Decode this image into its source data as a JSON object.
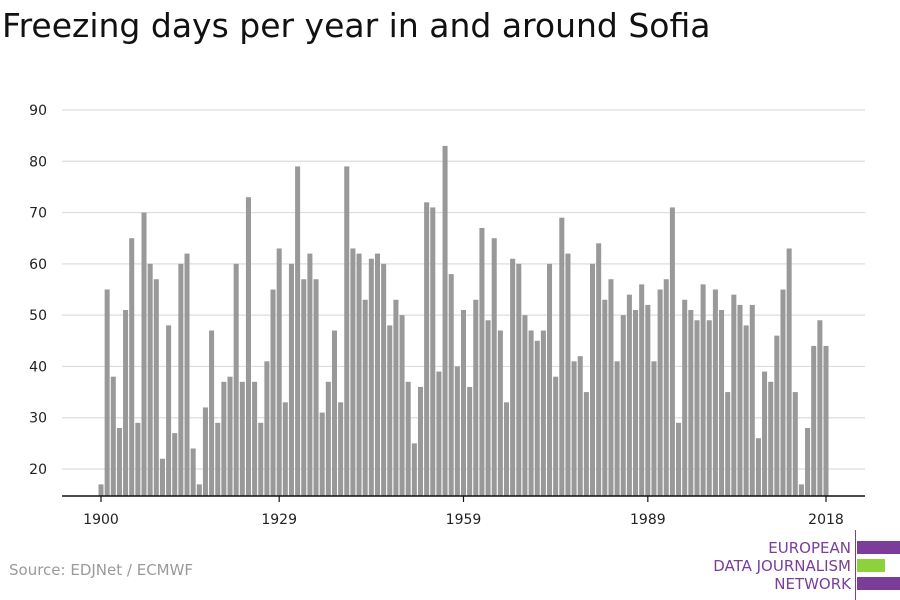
{
  "title": "Freezing days per year in and around Sofia",
  "source": "Source: EDJNet / ECMWF",
  "logo": {
    "lines": [
      "EUROPEAN",
      "DATA JOURNALISM",
      "NETWORK"
    ],
    "colors": {
      "purple": "#7b3d99",
      "green": "#8cd23a"
    }
  },
  "chart_data": {
    "type": "bar",
    "title": "Freezing days per year in and around Sofia",
    "xlabel": "",
    "ylabel": "",
    "ylim": [
      15,
      90
    ],
    "yticks": [
      20,
      30,
      40,
      50,
      60,
      70,
      80,
      90
    ],
    "xticks": [
      1900,
      1929,
      1959,
      1989,
      2018
    ],
    "grid": true,
    "bar_color": "#999999",
    "first_year": 1900,
    "categories": [
      1900,
      1901,
      1902,
      1903,
      1904,
      1905,
      1906,
      1907,
      1908,
      1909,
      1910,
      1911,
      1912,
      1913,
      1914,
      1915,
      1916,
      1917,
      1918,
      1919,
      1920,
      1921,
      1922,
      1923,
      1924,
      1925,
      1926,
      1927,
      1928,
      1929,
      1930,
      1931,
      1932,
      1933,
      1934,
      1935,
      1936,
      1937,
      1938,
      1939,
      1940,
      1941,
      1942,
      1943,
      1944,
      1945,
      1946,
      1947,
      1948,
      1949,
      1950,
      1951,
      1952,
      1953,
      1954,
      1955,
      1956,
      1957,
      1958,
      1959,
      1960,
      1961,
      1962,
      1963,
      1964,
      1965,
      1966,
      1967,
      1968,
      1969,
      1970,
      1971,
      1972,
      1973,
      1974,
      1975,
      1976,
      1977,
      1978,
      1979,
      1980,
      1981,
      1982,
      1983,
      1984,
      1985,
      1986,
      1987,
      1988,
      1989,
      1990,
      1991,
      1992,
      1993,
      1994,
      1995,
      1996,
      1997,
      1998,
      1999,
      2000,
      2001,
      2002,
      2003,
      2004,
      2005,
      2006,
      2007,
      2008,
      2009,
      2010,
      2011,
      2012,
      2013,
      2014,
      2015,
      2016,
      2017,
      2018
    ],
    "values": [
      17,
      55,
      38,
      28,
      51,
      65,
      29,
      70,
      60,
      57,
      22,
      48,
      27,
      60,
      62,
      24,
      17,
      32,
      47,
      29,
      37,
      38,
      60,
      37,
      73,
      37,
      29,
      41,
      55,
      63,
      33,
      60,
      79,
      57,
      62,
      57,
      31,
      37,
      47,
      33,
      79,
      63,
      62,
      53,
      61,
      62,
      60,
      48,
      53,
      50,
      37,
      25,
      36,
      72,
      71,
      39,
      83,
      58,
      40,
      51,
      36,
      53,
      67,
      49,
      65,
      47,
      33,
      61,
      60,
      50,
      47,
      45,
      47,
      60,
      38,
      69,
      62,
      41,
      42,
      35,
      60,
      64,
      53,
      57,
      41,
      50,
      54,
      51,
      56,
      52,
      41,
      55,
      57,
      71,
      29,
      53,
      51,
      49,
      56,
      49,
      55,
      51,
      35,
      54,
      52,
      48,
      52,
      26,
      39,
      37,
      46,
      55,
      63,
      35,
      17,
      28,
      44,
      49,
      44
    ]
  }
}
